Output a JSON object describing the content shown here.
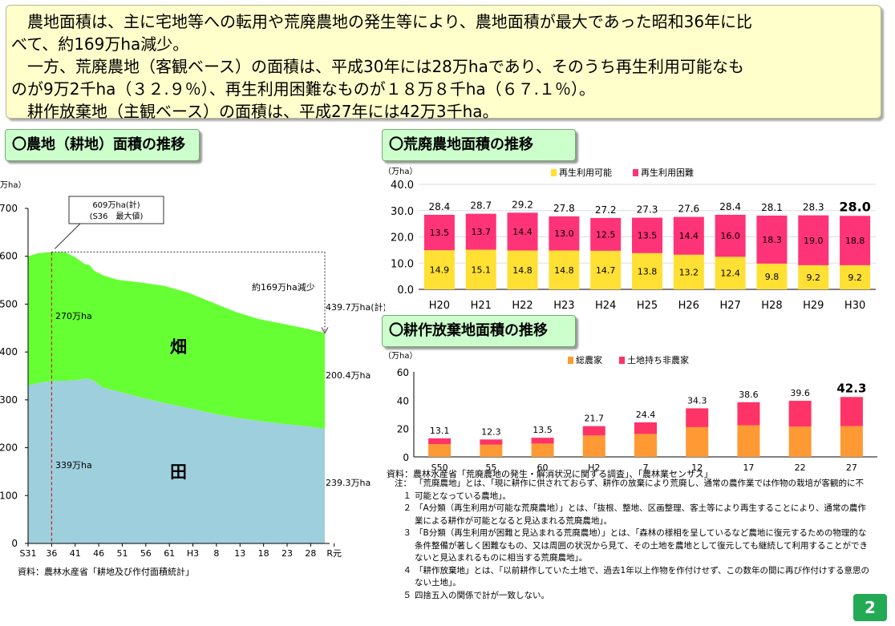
{
  "summary": {
    "line1": "　農地面積は、主に宅地等への転用や荒廃農地の発生等により、農地面積が最大であった昭和36年に比",
    "line2": "べて、約169万ha減少。",
    "line3": "　一方、荒廃農地（客観ベース）の面積は、平成30年には28万haであり、そのうち再生利用可能なも",
    "line4": "のが9万2千ha（３２.９％）、再生利用困難なものが１８万８千ha（６７.１％）。",
    "line5": "　耕作放棄地（主観ベース）の面積は、平成27年には42万3千ha。"
  },
  "tabs": {
    "farmland": "〇農地（耕地）面積の推移",
    "abandoned": "〇荒廃農地面積の推移",
    "uncultivated": "〇耕作放棄地面積の推移"
  },
  "sources": {
    "farmland": "資料：農林水産省「耕地及び作付面積統計」",
    "abandoned": "資料：農林水産省「荒廃農地の発生・解消状況に関する調査」、「農林業センサス」"
  },
  "notes": [
    {
      "prefix": "注：１",
      "text": "「荒廃農地」とは、「現に耕作に供されておらず、耕作の放棄により荒廃し、通常の農作業では作物の栽培が客観的に不可能となっている農地」。"
    },
    {
      "prefix": "２",
      "text": "「A分類（再生利用が可能な荒廃農地）」とは、「抜根、整地、区画整理、客土等により再生することにより、通常の農作業による耕作が可能となると見込まれる荒廃農地」。"
    },
    {
      "prefix": "３",
      "text": "「B分類（再生利用が困難と見込まれる荒廃農地）」とは、「森林の様相を呈しているなど農地に復元するための物理的な条件整備が著しく困難なもの、又は周囲の状況から見て、その土地を農地として復元しても継続して利用することができないと見込まれるものに相当する荒廃農地」。"
    },
    {
      "prefix": "４",
      "text": "「耕作放棄地」とは、「以前耕作していた土地で、過去1年以上作物を作付けせず、この数年の間に再び作付けする意思のない土地」。"
    },
    {
      "prefix": "５",
      "text": "四捨五入の関係で計が一致しない。"
    }
  ],
  "page_number": "2",
  "colors": {
    "paddy": "#9ecfdc",
    "upland": "#66ff33",
    "reusable": "#ffe033",
    "difficult": "#ff3377",
    "farm_households": "#ff9933",
    "nonfarm_owners": "#ff3366",
    "tab_bg": "#ccffcc",
    "summary_bg": "#ffffcc",
    "badge": "#22aa55"
  },
  "chart_data": [
    {
      "type": "area",
      "ylabel": "万ha）",
      "ylim": [
        0,
        700
      ],
      "yticks": [
        0,
        100,
        200,
        300,
        400,
        500,
        600,
        700
      ],
      "x_tick_labels": [
        "S31",
        "36",
        "41",
        "46",
        "51",
        "56",
        "61",
        "H3",
        "8",
        "13",
        "18",
        "23",
        "28",
        "R元"
      ],
      "x_years": [
        1956,
        1958,
        1960,
        1961,
        1962,
        1964,
        1966,
        1968,
        1969,
        1970,
        1972,
        1975,
        1980,
        1985,
        1990,
        1995,
        2000,
        2005,
        2010,
        2015,
        2019
      ],
      "series": [
        {
          "name": "田",
          "values": [
            330,
            335,
            338,
            339,
            340,
            340,
            341,
            344,
            344,
            340,
            325,
            318,
            305,
            293,
            283,
            272,
            263,
            256,
            250,
            245,
            239.3
          ]
        },
        {
          "name": "畑",
          "values": [
            270,
            271,
            270,
            270,
            268,
            268,
            257,
            240,
            238,
            230,
            235,
            233,
            240,
            245,
            241,
            232,
            221,
            213,
            209,
            204,
            200.4
          ]
        }
      ],
      "labels": {
        "upland_name": "畑",
        "paddy_name": "田",
        "upland_1961": "270万ha",
        "paddy_1961": "339万ha",
        "upland_latest": "200.4万ha",
        "paddy_latest": "239.3万ha",
        "peak_line1": "609万ha(計)",
        "peak_line2": "(S36　最大値)",
        "total_latest": "439.7万ha(計)",
        "decrease": "約169万ha減少"
      },
      "peak_year": 1961,
      "peak_total": 609,
      "latest_total": 439.7
    },
    {
      "type": "bar",
      "unit": "（万ha）",
      "categories": [
        "H20",
        "H21",
        "H22",
        "H23",
        "H24",
        "H25",
        "H26",
        "H27",
        "H28",
        "H29",
        "H30"
      ],
      "series": [
        {
          "name": "再生利用可能",
          "values": [
            14.9,
            15.1,
            14.8,
            14.8,
            14.7,
            13.8,
            13.2,
            12.4,
            9.8,
            9.2,
            9.2
          ]
        },
        {
          "name": "再生利用困難",
          "values": [
            13.5,
            13.7,
            14.4,
            13.0,
            12.5,
            13.5,
            14.4,
            16.0,
            18.3,
            19.0,
            18.8
          ]
        }
      ],
      "totals": [
        "28.4",
        "28.7",
        "29.2",
        "27.8",
        "27.2",
        "27.3",
        "27.6",
        "28.4",
        "28.1",
        "28.3",
        "28.0"
      ],
      "ylim": [
        0,
        40
      ],
      "yticks": [
        "0.0",
        "10.0",
        "20.0",
        "30.0",
        "40.0"
      ],
      "stacked": true
    },
    {
      "type": "bar",
      "unit": "（万ha）",
      "categories": [
        "S50",
        "55",
        "60",
        "H2",
        "7",
        "12",
        "17",
        "22",
        "27"
      ],
      "series": [
        {
          "name": "総農家",
          "values": [
            9.0,
            8.6,
            9.4,
            15.1,
            16.2,
            21.0,
            22.3,
            21.4,
            21.7
          ]
        },
        {
          "name": "土地持ち非農家",
          "values": [
            4.1,
            3.7,
            4.1,
            6.6,
            8.2,
            13.3,
            16.3,
            18.2,
            20.6
          ]
        }
      ],
      "totals": [
        "13.1",
        "12.3",
        "13.5",
        "21.7",
        "24.4",
        "34.3",
        "38.6",
        "39.6",
        "42.3"
      ],
      "ylim": [
        0,
        60
      ],
      "yticks": [
        "0",
        "20",
        "40",
        "60"
      ],
      "stacked": true
    }
  ]
}
